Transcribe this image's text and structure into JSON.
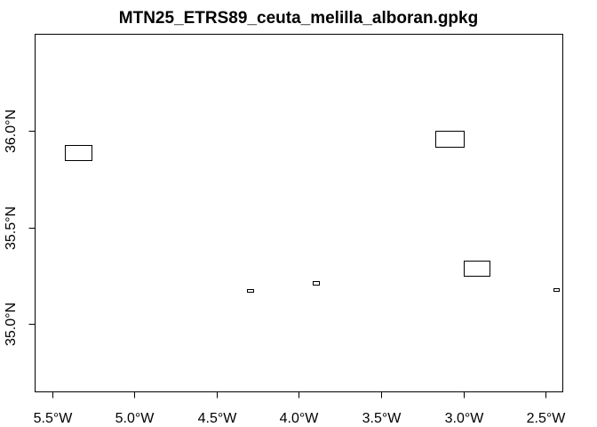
{
  "title": "MTN25_ETRS89_ceuta_melilla_alboran.gpkg",
  "map": {
    "x_range": [
      -5.6,
      -2.4
    ],
    "y_range": [
      34.65,
      36.5
    ],
    "x_ticks": [
      {
        "value": -5.5,
        "label": "5.5°W"
      },
      {
        "value": -5.0,
        "label": "5.0°W"
      },
      {
        "value": -4.5,
        "label": "4.5°W"
      },
      {
        "value": -4.0,
        "label": "4.0°W"
      },
      {
        "value": -3.5,
        "label": "3.5°W"
      },
      {
        "value": -3.0,
        "label": "3.0°W"
      },
      {
        "value": -2.5,
        "label": "2.5°W"
      }
    ],
    "y_ticks": [
      {
        "value": 35.0,
        "label": "35.0°N"
      },
      {
        "value": 35.5,
        "label": "35.5°N"
      },
      {
        "value": 36.0,
        "label": "36.0°N"
      }
    ],
    "features": [
      {
        "xmin": -5.42,
        "xmax": -5.26,
        "ymin": 35.85,
        "ymax": 35.93
      },
      {
        "xmin": -3.17,
        "xmax": -3.0,
        "ymin": 35.92,
        "ymax": 36.0
      },
      {
        "xmin": -3.0,
        "xmax": -2.84,
        "ymin": 35.25,
        "ymax": 35.33
      },
      {
        "xmin": -4.315,
        "xmax": -4.28,
        "ymin": 35.165,
        "ymax": 35.18
      },
      {
        "xmin": -3.915,
        "xmax": -3.88,
        "ymin": 35.205,
        "ymax": 35.22
      },
      {
        "xmin": -2.455,
        "xmax": -2.42,
        "ymin": 35.17,
        "ymax": 35.185
      }
    ]
  }
}
